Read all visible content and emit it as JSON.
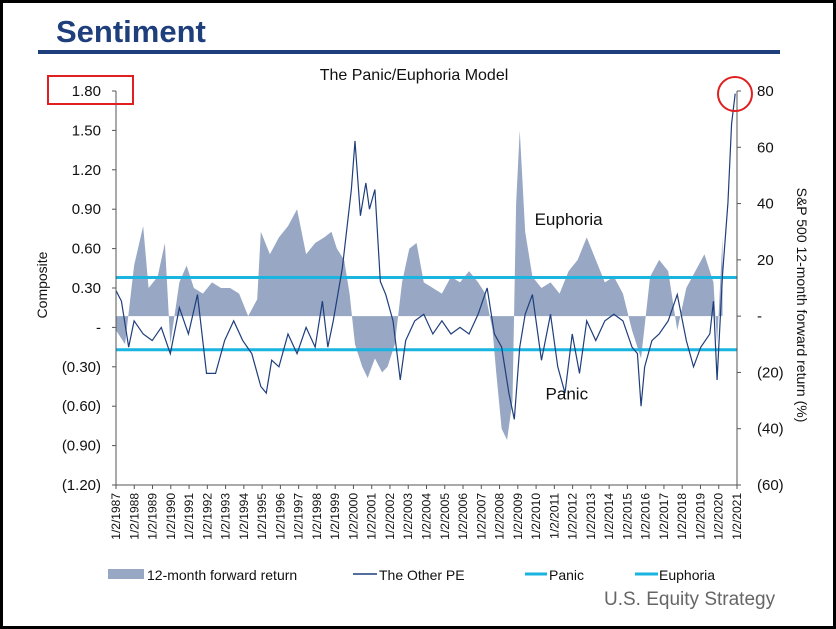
{
  "header": {
    "title": "Sentiment"
  },
  "footer": {
    "text": "U.S. Equity Strategy"
  },
  "colors": {
    "heading": "#1f3e7c",
    "area": "#97a7c4",
    "line": "#1f3e7c",
    "thresholds": "#19b4e0",
    "highlight": "#e02020"
  },
  "chart_data": {
    "type": "line",
    "title": "The Panic/Euphoria Model",
    "ylabel": "Composite",
    "y2label": "S&P 500 12-month forward return (%)",
    "xlabel": "",
    "ylim": [
      -1.2,
      1.8
    ],
    "y2lim": [
      -60,
      80
    ],
    "yticks": [
      "1.80",
      "1.50",
      "1.20",
      "0.90",
      "0.60",
      "0.30",
      "-",
      "(0.30)",
      "(0.60)",
      "(0.90)",
      "(1.20)"
    ],
    "y2ticks": [
      "80",
      "60",
      "40",
      "20",
      "-",
      "(20)",
      "(40)",
      "(60)"
    ],
    "xticks": [
      "1/2/1987",
      "1/2/1988",
      "1/2/1989",
      "1/2/1990",
      "1/2/1991",
      "1/2/1992",
      "1/2/1993",
      "1/2/1994",
      "1/2/1995",
      "1/2/1996",
      "1/2/1997",
      "1/2/1998",
      "1/2/1999",
      "1/2/2000",
      "1/2/2001",
      "1/2/2002",
      "1/2/2003",
      "1/2/2004",
      "1/2/2005",
      "1/2/2006",
      "1/2/2007",
      "1/2/2008",
      "1/2/2009",
      "1/2/2010",
      "1/2/2011",
      "1/2/2012",
      "1/2/2013",
      "1/2/2014",
      "1/2/2015",
      "1/2/2016",
      "1/2/2017",
      "1/2/2018",
      "1/2/2019",
      "1/2/2020",
      "1/2/2021"
    ],
    "legend_position": "bottom",
    "grid": false,
    "annotations": [
      {
        "text": "Euphoria",
        "x": 2012.0,
        "y": 0.78
      },
      {
        "text": "Panic",
        "x": 2011.9,
        "y": -0.55
      }
    ],
    "thresholds": [
      {
        "name": "Panic",
        "value": -0.17
      },
      {
        "name": "Euphoria",
        "value": 0.38
      }
    ],
    "series": [
      {
        "name": "12-month forward return",
        "axis": "right",
        "style": "area",
        "x": [
          1987.0,
          1987.5,
          1988.0,
          1988.5,
          1988.8,
          1989.3,
          1989.7,
          1990.0,
          1990.5,
          1990.9,
          1991.3,
          1991.8,
          1992.3,
          1992.8,
          1993.3,
          1993.8,
          1994.3,
          1994.8,
          1995.0,
          1995.5,
          1996.0,
          1996.5,
          1997.0,
          1997.5,
          1998.0,
          1998.5,
          1998.9,
          1999.2,
          1999.6,
          1999.9,
          2000.2,
          2000.6,
          2000.9,
          2001.3,
          2001.7,
          2002.0,
          2002.4,
          2002.8,
          2003.2,
          2003.6,
          2004.0,
          2004.5,
          2005.0,
          2005.5,
          2006.0,
          2006.5,
          2007.0,
          2007.4,
          2007.8,
          2008.0,
          2008.3,
          2008.6,
          2008.9,
          2009.1,
          2009.3,
          2009.6,
          2010.0,
          2010.5,
          2011.0,
          2011.5,
          2012.0,
          2012.5,
          2013.0,
          2013.5,
          2014.0,
          2014.5,
          2015.0,
          2015.5,
          2016.0,
          2016.5,
          2017.0,
          2017.5,
          2018.0,
          2018.5,
          2019.0,
          2019.5,
          2020.0,
          2020.2,
          2020.5
        ],
        "values": [
          -5,
          -10,
          18,
          32,
          10,
          14,
          26,
          -10,
          12,
          18,
          10,
          8,
          12,
          10,
          10,
          8,
          0,
          6,
          30,
          22,
          28,
          32,
          38,
          22,
          26,
          28,
          30,
          24,
          20,
          8,
          -10,
          -18,
          -22,
          -15,
          -20,
          -18,
          -10,
          12,
          24,
          26,
          12,
          10,
          8,
          14,
          12,
          16,
          12,
          8,
          -5,
          -20,
          -40,
          -44,
          -30,
          40,
          66,
          30,
          14,
          10,
          12,
          8,
          16,
          20,
          28,
          20,
          12,
          14,
          8,
          -5,
          -15,
          14,
          20,
          16,
          -5,
          10,
          16,
          22,
          12,
          -10,
          28
        ]
      },
      {
        "name": "The Other PE",
        "axis": "left",
        "style": "line",
        "x": [
          1987.0,
          1987.3,
          1987.7,
          1988.0,
          1988.5,
          1989.0,
          1989.5,
          1990.0,
          1990.5,
          1991.0,
          1991.5,
          1992.0,
          1992.5,
          1993.0,
          1993.5,
          1994.0,
          1994.5,
          1995.0,
          1995.3,
          1995.6,
          1996.0,
          1996.5,
          1997.0,
          1997.5,
          1998.0,
          1998.4,
          1998.7,
          1999.0,
          1999.5,
          2000.0,
          2000.2,
          2000.5,
          2000.8,
          2001.0,
          2001.3,
          2001.6,
          2001.9,
          2002.3,
          2002.7,
          2003.0,
          2003.5,
          2004.0,
          2004.5,
          2005.0,
          2005.5,
          2006.0,
          2006.5,
          2007.0,
          2007.5,
          2007.9,
          2008.3,
          2008.7,
          2009.0,
          2009.3,
          2009.6,
          2010.0,
          2010.5,
          2011.0,
          2011.4,
          2011.8,
          2012.2,
          2012.6,
          2013.0,
          2013.5,
          2014.0,
          2014.5,
          2015.0,
          2015.5,
          2015.8,
          2016.0,
          2016.2,
          2016.6,
          2017.0,
          2017.5,
          2018.0,
          2018.5,
          2018.9,
          2019.3,
          2019.8,
          2020.0,
          2020.2,
          2020.5,
          2020.8,
          2021.0,
          2021.2
        ],
        "values": [
          0.28,
          0.2,
          -0.15,
          0.05,
          -0.05,
          -0.1,
          0.0,
          -0.2,
          0.15,
          -0.05,
          0.25,
          -0.35,
          -0.35,
          -0.1,
          0.05,
          -0.1,
          -0.2,
          -0.45,
          -0.5,
          -0.25,
          -0.3,
          -0.05,
          -0.2,
          0.0,
          -0.15,
          0.2,
          -0.15,
          0.05,
          0.45,
          1.05,
          1.42,
          0.85,
          1.1,
          0.9,
          1.05,
          0.35,
          0.25,
          0.05,
          -0.4,
          -0.1,
          0.05,
          0.1,
          -0.05,
          0.05,
          -0.05,
          0.0,
          -0.05,
          0.1,
          0.3,
          -0.05,
          -0.15,
          -0.5,
          -0.7,
          -0.15,
          0.1,
          0.25,
          -0.25,
          0.1,
          -0.3,
          -0.5,
          -0.05,
          -0.35,
          0.05,
          -0.1,
          0.05,
          0.1,
          0.05,
          -0.15,
          -0.2,
          -0.6,
          -0.3,
          -0.1,
          -0.05,
          0.05,
          0.25,
          -0.1,
          -0.3,
          -0.15,
          -0.05,
          0.2,
          -0.4,
          0.4,
          0.95,
          1.55,
          1.78
        ]
      }
    ]
  },
  "legend": {
    "area": "12-month forward return",
    "line": "The Other PE",
    "panic": "Panic",
    "euphoria": "Euphoria"
  }
}
